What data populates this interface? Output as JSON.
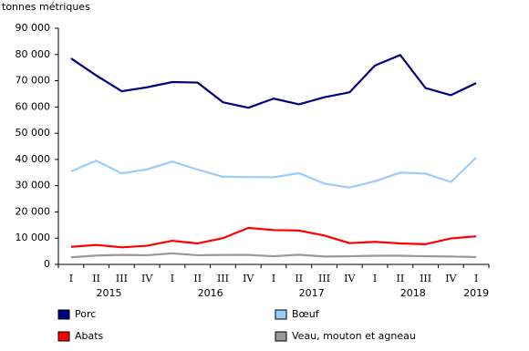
{
  "chart_data": {
    "type": "line",
    "y_label": "tonnes métriques",
    "groups": [
      {
        "name": "2015",
        "categories": [
          "I",
          "II",
          "III",
          "IV"
        ]
      },
      {
        "name": "2016",
        "categories": [
          "I",
          "II",
          "III",
          "IV"
        ]
      },
      {
        "name": "2017",
        "categories": [
          "I",
          "II",
          "III",
          "IV"
        ]
      },
      {
        "name": "2018",
        "categories": [
          "I",
          "II",
          "III",
          "IV"
        ]
      },
      {
        "name": "2019",
        "categories": [
          "I"
        ]
      }
    ],
    "series": [
      {
        "name": "Porc",
        "color": "#000080",
        "values": [
          78500,
          72000,
          66000,
          67500,
          69500,
          69300,
          61800,
          59700,
          63200,
          61000,
          63700,
          65600,
          75800,
          79800,
          67200,
          64500,
          69100
        ]
      },
      {
        "name": "Bœuf",
        "color": "#99ccff",
        "values": [
          35500,
          39500,
          34700,
          36200,
          39200,
          36100,
          33400,
          33300,
          33200,
          34800,
          30800,
          29300,
          31700,
          35000,
          34600,
          31400,
          40700
        ]
      },
      {
        "name": "Abats",
        "color": "#ff0000",
        "values": [
          6700,
          7400,
          6500,
          7100,
          9000,
          8000,
          10000,
          13900,
          13100,
          12900,
          11000,
          8100,
          8600,
          8000,
          7700,
          9900,
          10700
        ]
      },
      {
        "name": "Veau, mouton et agneau",
        "color": "#999999",
        "values": [
          2700,
          3400,
          3600,
          3500,
          4200,
          3500,
          3600,
          3600,
          3100,
          3700,
          3000,
          3100,
          3300,
          3300,
          3100,
          3000,
          2800
        ]
      }
    ],
    "ylim": [
      0,
      90000
    ],
    "yticks": [
      {
        "value": 0,
        "label": "0"
      },
      {
        "value": 10000,
        "label": "10 000"
      },
      {
        "value": 20000,
        "label": "20 000"
      },
      {
        "value": 30000,
        "label": "30 000"
      },
      {
        "value": 40000,
        "label": "40 000"
      },
      {
        "value": 50000,
        "label": "50 000"
      },
      {
        "value": 60000,
        "label": "60 000"
      },
      {
        "value": 70000,
        "label": "70 000"
      },
      {
        "value": 80000,
        "label": "80 000"
      },
      {
        "value": 90000,
        "label": "90 000"
      }
    ]
  }
}
